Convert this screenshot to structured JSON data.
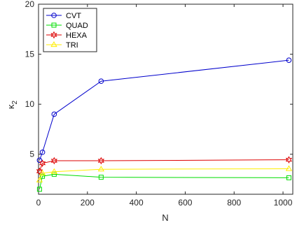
{
  "chart_data": {
    "type": "line",
    "xlabel": "N",
    "ylabel_main": "κ",
    "ylabel_sub": "2",
    "xlim": [
      0,
      1040
    ],
    "ylim": [
      1,
      20
    ],
    "xticks": [
      0,
      200,
      400,
      600,
      800,
      1000
    ],
    "yticks": [
      5,
      10,
      15,
      20
    ],
    "grid": false,
    "legend_position": "top-left",
    "x": [
      4,
      16,
      64,
      256,
      1024
    ],
    "series": [
      {
        "name": "CVT",
        "color": "#0000cc",
        "marker": "circle",
        "values": [
          4.4,
          5.2,
          9.0,
          12.3,
          14.4
        ]
      },
      {
        "name": "QUAD",
        "color": "#00dd00",
        "marker": "square",
        "values": [
          1.5,
          2.8,
          3.0,
          2.7,
          2.65
        ]
      },
      {
        "name": "HEXA",
        "color": "#dd0000",
        "marker": "hexagram",
        "values": [
          3.3,
          4.1,
          4.35,
          4.35,
          4.45
        ]
      },
      {
        "name": "TRI",
        "color": "#ffee00",
        "marker": "triangle",
        "values": [
          2.4,
          3.1,
          3.25,
          3.5,
          3.55
        ]
      }
    ]
  }
}
